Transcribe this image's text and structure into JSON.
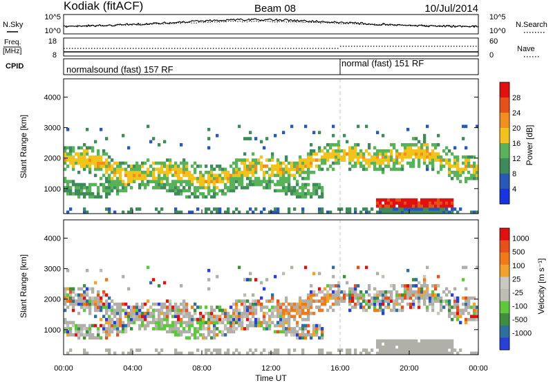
{
  "header": {
    "station": "Kodiak (fitACF)",
    "beam": "Beam 08",
    "date": "10/Jul/2014"
  },
  "strip_panels": {
    "nsky": {
      "label": "N.Sky",
      "ticks": [
        "10^5",
        "10^0"
      ]
    },
    "nsearch": {
      "label": "N.Search",
      "ticks": [
        "10^5",
        "10^0"
      ]
    },
    "freq": {
      "label_line1": "Freq.",
      "label_line2": "[MHz]",
      "ticks": [
        "18",
        "8"
      ]
    },
    "nave": {
      "label": "Nave",
      "ticks": [
        "60",
        "0"
      ]
    },
    "cpid": {
      "label": "CPID",
      "modes": [
        "normalsound (fast) 157 RF",
        "normal (fast) 151 RF"
      ]
    }
  },
  "colors": {
    "power": [
      "#1a33e0",
      "#2858b8",
      "#3f8a5a",
      "#57b25a",
      "#f2c31a",
      "#f28e1a",
      "#e8501a",
      "#e01010"
    ],
    "velocity": [
      "#2a3fd8",
      "#2f6fa0",
      "#3d8f3d",
      "#5cc83a",
      "#bdbdb6",
      "#c9c9c2",
      "#f0a22a",
      "#f07a1a",
      "#e8501a",
      "#e01010"
    ],
    "ground": "#b0b0a8"
  },
  "chart_data": [
    {
      "type": "heatmap",
      "title": "",
      "xlabel": "Time UT",
      "ylabel": "Slant Range [km]",
      "x_ticks": [
        "00:00",
        "04:00",
        "08:00",
        "12:00",
        "16:00",
        "20:00",
        "00:00"
      ],
      "x_range_hours": [
        0,
        24
      ],
      "y_ticks": [
        "1000",
        "2000",
        "3000",
        "4000"
      ],
      "y_range_km": [
        180,
        4600
      ],
      "colorbar": {
        "label": "Power [dB]",
        "ticks": [
          "4",
          "8",
          "12",
          "16",
          "20",
          "24",
          "28"
        ],
        "range": [
          0,
          32
        ]
      },
      "cpid_change_hour": 16
    },
    {
      "type": "heatmap",
      "title": "",
      "xlabel": "Time UT",
      "ylabel": "Slant Range [km]",
      "x_ticks": [
        "00:00",
        "04:00",
        "08:00",
        "12:00",
        "16:00",
        "20:00",
        "00:00"
      ],
      "x_range_hours": [
        0,
        24
      ],
      "y_ticks": [
        "1000",
        "2000",
        "3000",
        "4000"
      ],
      "y_range_km": [
        180,
        4600
      ],
      "colorbar": {
        "label": "Velocity [m s⁻¹]",
        "ticks": [
          "1000",
          "500",
          "100",
          "25",
          "-25",
          "-100",
          "-500",
          "-1000"
        ]
      },
      "cpid_change_hour": 16
    }
  ]
}
